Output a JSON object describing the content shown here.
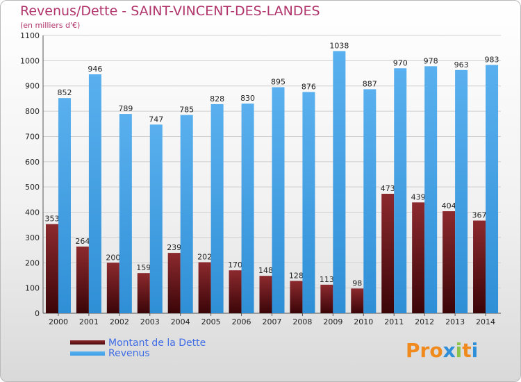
{
  "title": "Revenus/Dette - SAINT-VINCENT-DES-LANDES",
  "subtitle": "(en milliers d'€)",
  "logo_text": "Proxiti",
  "colors": {
    "dette": "#6b1518",
    "revenus": "#3d9ee6",
    "title": "#b0336a",
    "legend_text": "#3e6de6"
  },
  "chart_data": {
    "type": "bar",
    "categories": [
      "2000",
      "2001",
      "2002",
      "2003",
      "2004",
      "2005",
      "2006",
      "2007",
      "2008",
      "2009",
      "2010",
      "2011",
      "2012",
      "2013",
      "2014"
    ],
    "series": [
      {
        "name": "Montant de la Dette",
        "values": [
          353,
          264,
          200,
          159,
          239,
          202,
          170,
          148,
          128,
          113,
          98,
          473,
          439,
          404,
          367
        ]
      },
      {
        "name": "Revenus",
        "values": [
          852,
          946,
          789,
          747,
          785,
          828,
          830,
          895,
          876,
          1038,
          887,
          970,
          978,
          963,
          983
        ]
      }
    ],
    "y_ticks": [
      0,
      100,
      200,
      300,
      400,
      500,
      600,
      700,
      800,
      900,
      1000,
      1100
    ],
    "ylim": [
      0,
      1100
    ],
    "grid": true,
    "legend_position": "bottom-left"
  }
}
